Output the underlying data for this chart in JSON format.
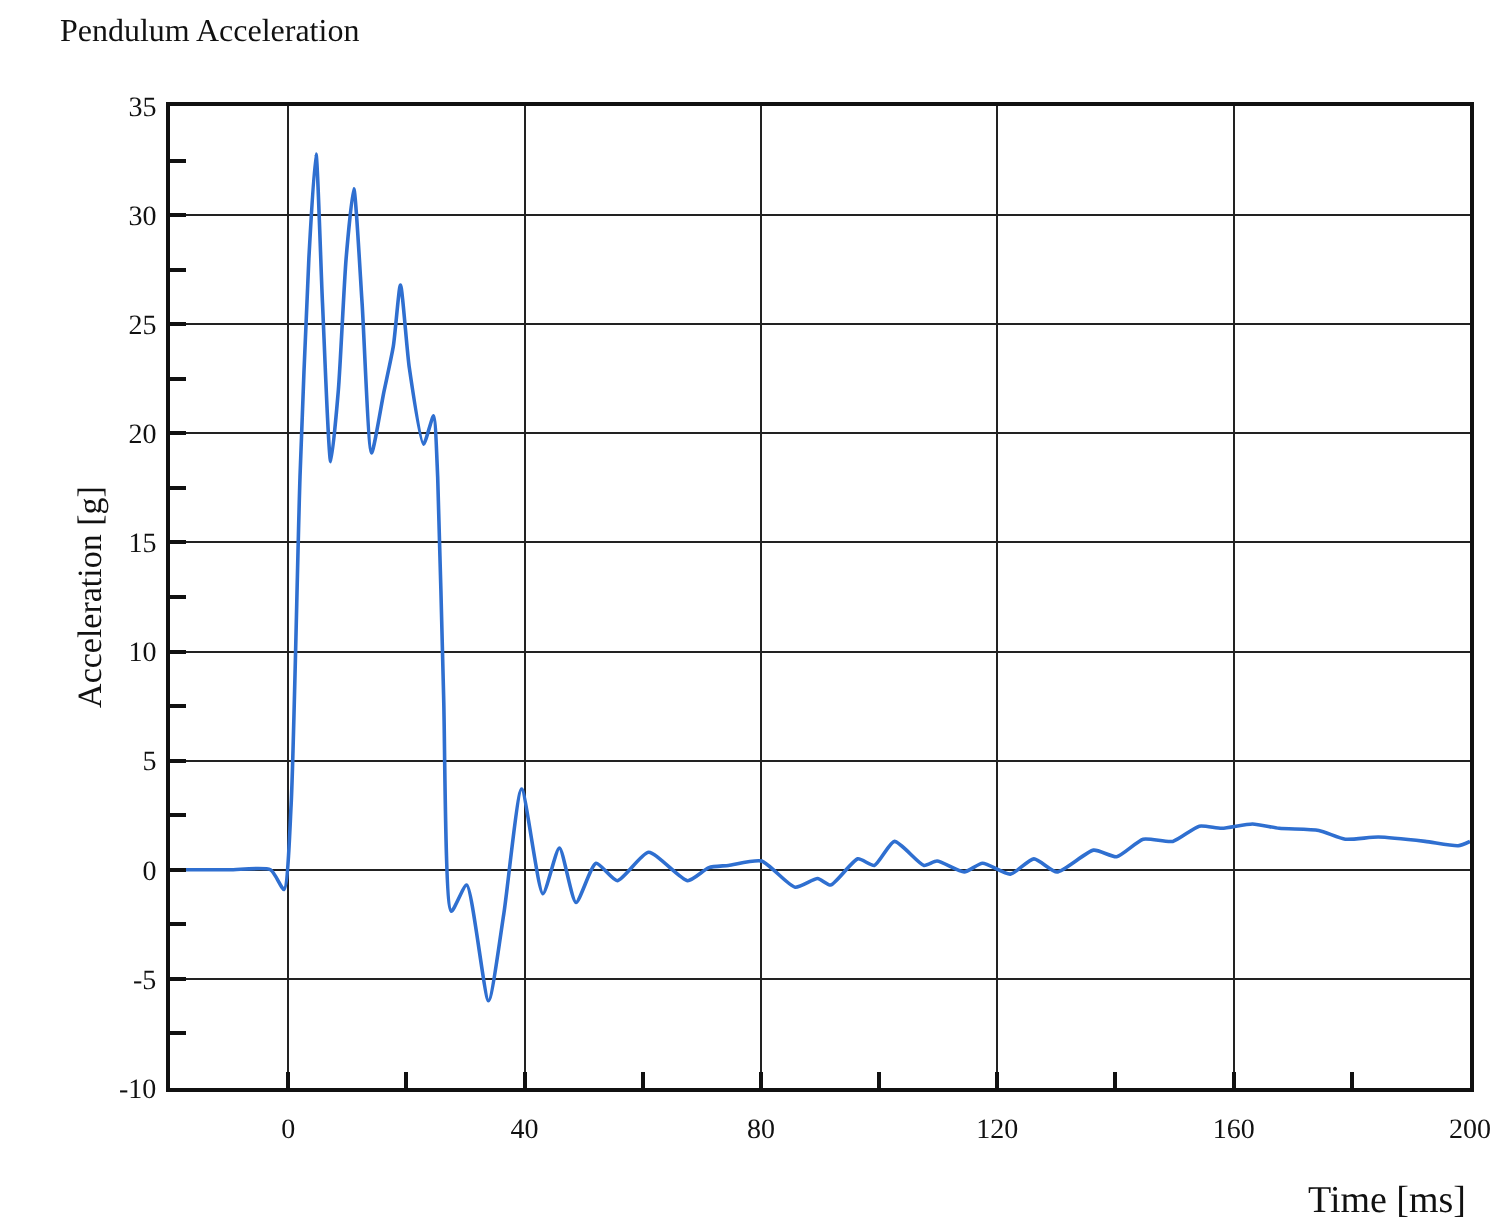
{
  "chart_data": {
    "type": "line",
    "title": "Pendulum Acceleration",
    "xlabel": "Time [ms]",
    "ylabel": "Acceleration [g]",
    "x": [
      -20,
      -10,
      -3,
      -0.7,
      0.5,
      2,
      3.5,
      4.7,
      5.8,
      7.2,
      8.5,
      9.8,
      11.1,
      12.5,
      14.1,
      16.2,
      17.8,
      19,
      20.5,
      22.9,
      24.6,
      25.3,
      26.3,
      27.6,
      30.2,
      33.9,
      36.5,
      39.5,
      43.1,
      45.9,
      48.7,
      52.1,
      55.7,
      61,
      67.6,
      71.2,
      74.5,
      80.1,
      85.8,
      89.6,
      91.8,
      96.4,
      99.2,
      102.6,
      107.6,
      109.8,
      114.4,
      117.5,
      122.2,
      126.2,
      130.1,
      136.3,
      140.2,
      144.7,
      149.7,
      154.2,
      158,
      163.2,
      167.7,
      174.4,
      178.9,
      184.5,
      192.4,
      198,
      200
    ],
    "series": [
      {
        "color": "#2f6fd0",
        "values": [
          0,
          0,
          0,
          -0.9,
          3,
          18,
          28,
          32.8,
          26,
          18.7,
          22,
          28,
          31.2,
          26,
          19.1,
          21.9,
          24,
          26.8,
          23,
          19.5,
          20.8,
          18,
          8,
          -1.9,
          -0.7,
          -6,
          -2,
          3.7,
          -1.1,
          1,
          -1.5,
          0.3,
          -0.5,
          0.8,
          -0.5,
          0.1,
          0.2,
          0.4,
          -0.8,
          -0.4,
          -0.7,
          0.5,
          0.2,
          1.3,
          0.2,
          0.4,
          -0.1,
          0.3,
          -0.2,
          0.5,
          -0.1,
          0.9,
          0.6,
          1.4,
          1.3,
          2,
          1.9,
          2.1,
          1.9,
          1.8,
          1.4,
          1.5,
          1.3,
          1.1,
          1.3
        ]
      }
    ],
    "xlim": [
      -20,
      200
    ],
    "xticks": [
      0,
      40,
      80,
      120,
      160,
      200
    ],
    "ylim": [
      -10,
      35
    ],
    "yticks": [
      -10,
      -5,
      0,
      5,
      10,
      15,
      20,
      25,
      30,
      35
    ],
    "grid": true,
    "marker": "none",
    "line_style": "solid"
  }
}
